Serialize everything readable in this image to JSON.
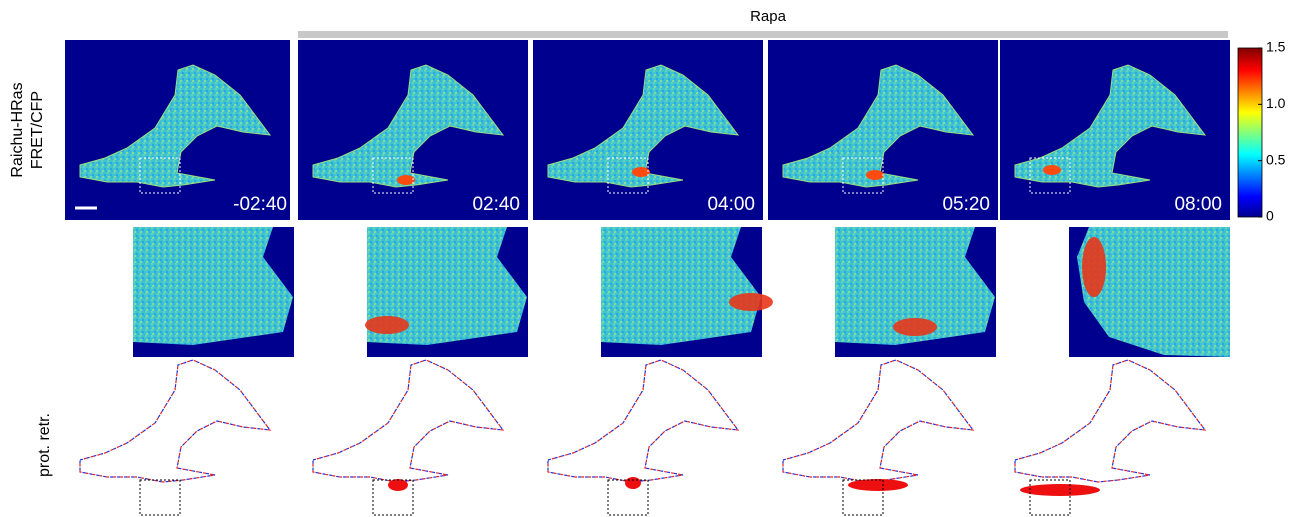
{
  "header": {
    "treatment": "Rapa"
  },
  "row_labels": {
    "fret": [
      "Raichu-HRas",
      "FRET/CFP"
    ],
    "protrusion": "prot. retr."
  },
  "panels": [
    {
      "time": "-02:40"
    },
    {
      "time": "02:40"
    },
    {
      "time": "04:00"
    },
    {
      "time": "05:20"
    },
    {
      "time": "08:00"
    }
  ],
  "colorbar": {
    "range": [
      0,
      1.5
    ],
    "ticks": [
      {
        "value": 1.5,
        "label": "1.5"
      },
      {
        "value": 1,
        "label": "1.0"
      },
      {
        "value": 0.5,
        "label": "0.5"
      },
      0
    ]
  }
}
